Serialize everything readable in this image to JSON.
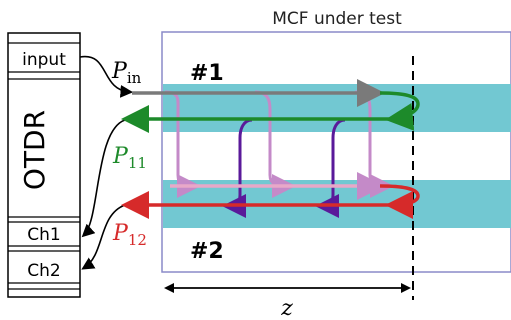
{
  "title": "MCF under test",
  "otdr": {
    "label": "OTDR",
    "port_input": "input",
    "port_ch1": "Ch1",
    "port_ch2": "Ch2"
  },
  "cores": {
    "core1": "#1",
    "core2": "#2"
  },
  "signals": {
    "p_in": {
      "base": "P",
      "sub": "in"
    },
    "p_11": {
      "base": "P",
      "sub": "11"
    },
    "p_12": {
      "base": "P",
      "sub": "12"
    }
  },
  "axis": {
    "length_label": "z"
  },
  "colors": {
    "core_fill": "#72c8d2",
    "fiber_border": "#8a8ac8",
    "input_arrow": "#7a7a7a",
    "p11_arrow": "#1d8a2a",
    "p12_arrow": "#d62a2a",
    "crosstalk_forward": "#c48ac8",
    "crosstalk_backward": "#5a1a9a"
  }
}
